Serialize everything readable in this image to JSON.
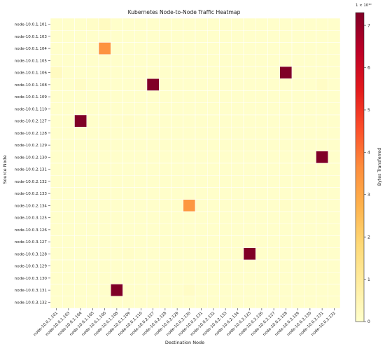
{
  "chart_data": {
    "type": "heatmap",
    "title": "Kubernetes Node-to-Node Traffic Heatmap",
    "xlabel": "Destination Node",
    "ylabel": "Source Node",
    "colorbar_label": "Bytes Transferred",
    "colorbar_exponent": "1 × 10¹⁰",
    "colorbar_ticks": [
      0,
      1,
      2,
      3,
      4,
      5,
      6,
      7
    ],
    "vmin": 0,
    "vmax": 7.3,
    "colormap": [
      "#ffffcc",
      "#ffeda0",
      "#fed976",
      "#feb24c",
      "#fd8d3c",
      "#fc4e2a",
      "#e31a1c",
      "#bd0026",
      "#800026"
    ],
    "nodes": [
      "node-10.0.1.101",
      "node-10.0.1.103",
      "node-10.0.1.104",
      "node-10.0.1.105",
      "node-10.0.1.106",
      "node-10.0.1.108",
      "node-10.0.1.109",
      "node-10.0.1.110",
      "node-10.0.2.127",
      "node-10.0.2.128",
      "node-10.0.2.129",
      "node-10.0.2.130",
      "node-10.0.2.131",
      "node-10.0.2.132",
      "node-10.0.2.133",
      "node-10.0.2.134",
      "node-10.0.3.125",
      "node-10.0.3.126",
      "node-10.0.3.127",
      "node-10.0.3.128",
      "node-10.0.3.129",
      "node-10.0.3.130",
      "node-10.0.3.131",
      "node-10.0.3.132"
    ],
    "default_value": 0.05,
    "cells": [
      {
        "source": "node-10.0.1.101",
        "target": "node-10.0.1.106",
        "value": 0.25
      },
      {
        "source": "node-10.0.1.101",
        "target": "node-10.0.1.105",
        "value": 0.1
      },
      {
        "source": "node-10.0.1.104",
        "target": "node-10.0.1.106",
        "value": 3.5
      },
      {
        "source": "node-10.0.1.104",
        "target": "node-10.0.2.128",
        "value": 0.15
      },
      {
        "source": "node-10.0.1.106",
        "target": "node-10.0.1.101",
        "value": 0.25
      },
      {
        "source": "node-10.0.1.106",
        "target": "node-10.0.3.128",
        "value": 7.3
      },
      {
        "source": "node-10.0.1.108",
        "target": "node-10.0.1.104",
        "value": 0.15
      },
      {
        "source": "node-10.0.1.108",
        "target": "node-10.0.2.127",
        "value": 7.3
      },
      {
        "source": "node-10.0.1.108",
        "target": "node-10.0.3.131",
        "value": 0.15
      },
      {
        "source": "node-10.0.2.127",
        "target": "node-10.0.1.104",
        "value": 7.3
      },
      {
        "source": "node-10.0.2.127",
        "target": "node-10.0.1.109",
        "value": 0.1
      },
      {
        "source": "node-10.0.2.130",
        "target": "node-10.0.3.131",
        "value": 7.3
      },
      {
        "source": "node-10.0.2.134",
        "target": "node-10.0.2.130",
        "value": 3.4
      },
      {
        "source": "node-10.0.2.134",
        "target": "node-10.0.3.128",
        "value": 0.1
      },
      {
        "source": "node-10.0.3.128",
        "target": "node-10.0.3.125",
        "value": 7.3
      },
      {
        "source": "node-10.0.3.128",
        "target": "node-10.0.1.109",
        "value": 0.1
      },
      {
        "source": "node-10.0.3.131",
        "target": "node-10.0.1.108",
        "value": 7.3
      },
      {
        "source": "node-10.0.3.131",
        "target": "node-10.0.2.130",
        "value": 0.15
      }
    ]
  }
}
